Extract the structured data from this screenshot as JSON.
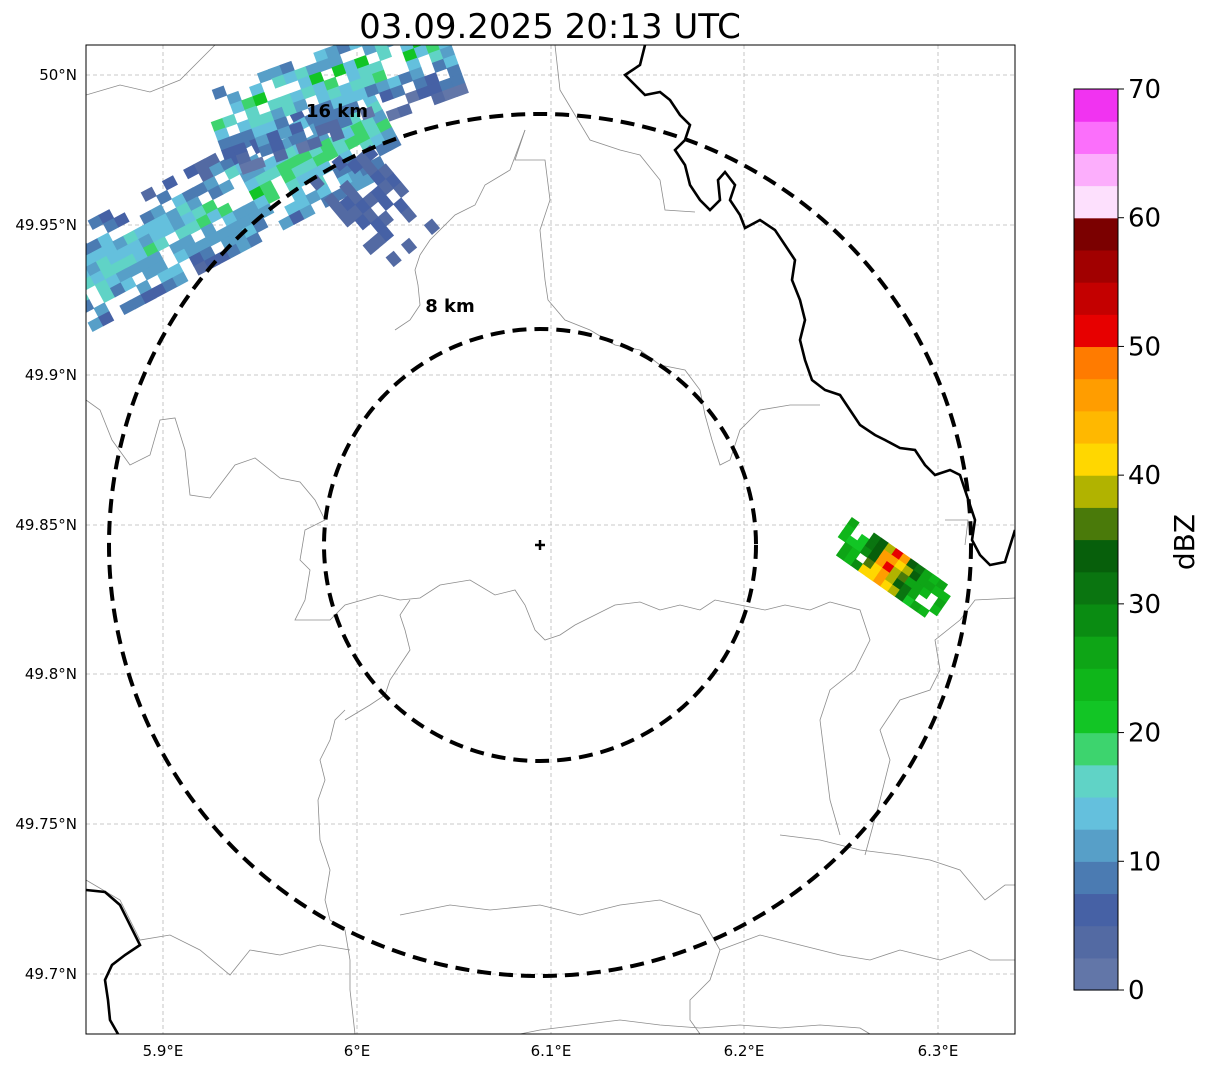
{
  "title": "03.09.2025 20:13 UTC",
  "map": {
    "x_ticks": [
      "5.9°E",
      "6°E",
      "6.1°E",
      "6.2°E",
      "6.3°E"
    ],
    "y_ticks": [
      "50°N",
      "49.95°N",
      "49.9°N",
      "49.85°N",
      "49.8°N",
      "49.75°N",
      "49.7°N"
    ],
    "range_rings": [
      {
        "label": "8 km",
        "radius_km": 8
      },
      {
        "label": "16 km",
        "radius_km": 16
      }
    ],
    "radar_site": {
      "lon": 6.096,
      "lat": 49.843
    },
    "grid": true
  },
  "colorbar": {
    "label": "dBZ",
    "ticks": [
      "0",
      "10",
      "20",
      "30",
      "40",
      "50",
      "60",
      "70"
    ],
    "min": 0,
    "max": 70,
    "step": 2.5,
    "colors": [
      "#6276a8",
      "#536aa3",
      "#4661a5",
      "#4b7bb2",
      "#579fc8",
      "#64c0dd",
      "#60d3c6",
      "#3dd46e",
      "#12c525",
      "#0fb61a",
      "#0ea516",
      "#0a8c12",
      "#0a7510",
      "#075f0b",
      "#4a7a0a",
      "#b1b300",
      "#ffd700",
      "#ffb800",
      "#ff9d00",
      "#ff7b00",
      "#e70000",
      "#c40000",
      "#a10000",
      "#7b0000",
      "#fde0fd",
      "#fcaefc",
      "#fb6ffb",
      "#f133f1"
    ]
  },
  "colors": {
    "border": "#000000",
    "admin_lines": "#8c8c8c",
    "grid": "#b8b8b8"
  }
}
